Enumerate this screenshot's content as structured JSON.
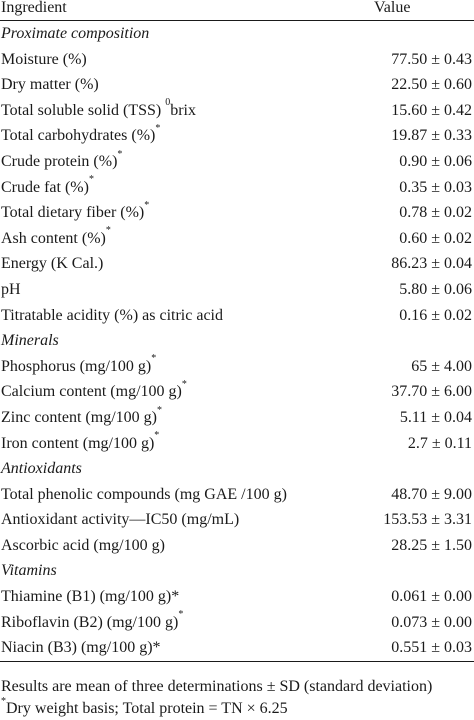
{
  "header": {
    "ingredient": "Ingredient",
    "value": "Value"
  },
  "rows": [
    {
      "type": "section",
      "label": "Proximate composition"
    },
    {
      "type": "item",
      "label": "Moisture (%)",
      "sup": "",
      "value": "77.50 ± 0.43"
    },
    {
      "type": "item",
      "label": "Dry matter (%)",
      "sup": "",
      "value": "22.50 ± 0.60"
    },
    {
      "type": "item",
      "label": "Total soluble solid (TSS) ",
      "sup_mid": "0",
      "label_after": "brix",
      "value": "15.60 ± 0.42"
    },
    {
      "type": "item",
      "label": "Total carbohydrates (%)",
      "sup": "*",
      "value": "19.87 ± 0.33"
    },
    {
      "type": "item",
      "label": "Crude protein (%)",
      "sup": "*",
      "value": "0.90 ± 0.06"
    },
    {
      "type": "item",
      "label": "Crude fat (%)",
      "sup": "*",
      "value": "0.35 ± 0.03"
    },
    {
      "type": "item",
      "label": "Total dietary fiber (%)",
      "sup": "*",
      "value": "0.78 ± 0.02"
    },
    {
      "type": "item",
      "label": "Ash content (%)",
      "sup": "*",
      "value": "0.60 ± 0.02"
    },
    {
      "type": "item",
      "label": "Energy (K Cal.)",
      "sup": "",
      "value": "86.23 ± 0.04"
    },
    {
      "type": "item",
      "label": "pH",
      "sup": "",
      "value": "5.80 ± 0.06"
    },
    {
      "type": "item",
      "label": "Titratable acidity (%) as citric acid",
      "sup": "",
      "value": "0.16 ± 0.02"
    },
    {
      "type": "section",
      "label": "Minerals"
    },
    {
      "type": "item",
      "label": "Phosphorus (mg/100 g)",
      "sup": "*",
      "value": "65 ± 4.00"
    },
    {
      "type": "item",
      "label": "Calcium content (mg/100 g)",
      "sup": "*",
      "value": "37.70 ± 6.00"
    },
    {
      "type": "item",
      "label": "Zinc content (mg/100 g)",
      "sup": "*",
      "value": "5.11 ± 0.04"
    },
    {
      "type": "item",
      "label": "Iron content (mg/100 g)",
      "sup": "*",
      "value": "2.7 ± 0.11"
    },
    {
      "type": "section",
      "label": "Antioxidants"
    },
    {
      "type": "item",
      "label": "Total phenolic compounds (mg GAE /100 g)",
      "sup": "",
      "value": "48.70 ± 9.00"
    },
    {
      "type": "item",
      "label": "Antioxidant activity—IC50 (mg/mL)",
      "sup": "",
      "value": "153.53 ± 3.31"
    },
    {
      "type": "item",
      "label": "Ascorbic acid (mg/100 g)",
      "sup": "",
      "value": "28.25 ± 1.50"
    },
    {
      "type": "section",
      "label": "Vitamins"
    },
    {
      "type": "item",
      "label": "Thiamine (B1) (mg/100 g)*",
      "sup": "",
      "value": "0.061 ± 0.00"
    },
    {
      "type": "item",
      "label": "Riboflavin (B2) (mg/100 g)",
      "sup": "*",
      "value": "0.073 ± 0.00"
    },
    {
      "type": "item",
      "label": "Niacin (B3) (mg/100 g)*",
      "sup": "",
      "value": "0.551 ± 0.03"
    }
  ],
  "footnotes": {
    "line1": "Results are mean of three determinations ± SD (standard deviation)",
    "line2_sup": "*",
    "line2": "Dry weight basis; Total protein = TN × 6.25"
  }
}
